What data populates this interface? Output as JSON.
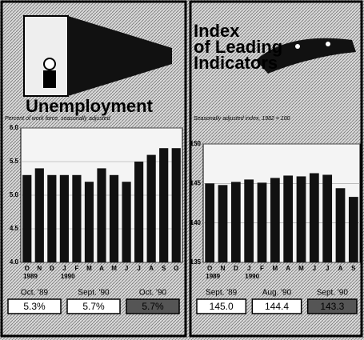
{
  "chart_data": [
    {
      "type": "bar",
      "title": [
        "Unemployment"
      ],
      "subtitle": "Percent of work force, seasonally adjusted",
      "categories": [
        "O",
        "N",
        "D",
        "J",
        "F",
        "M",
        "A",
        "M",
        "J",
        "J",
        "A",
        "S",
        "O"
      ],
      "values": [
        5.3,
        5.4,
        5.3,
        5.3,
        5.3,
        5.2,
        5.4,
        5.3,
        5.2,
        5.5,
        5.6,
        5.7,
        5.7
      ],
      "color": "#111111",
      "ylim": [
        4.0,
        6.0
      ],
      "yticks": [
        {
          "value": 4,
          "label": "4.0"
        },
        {
          "value": 4.5,
          "label": "4.5"
        },
        {
          "value": 5,
          "label": "5.0"
        },
        {
          "value": 5.5,
          "label": "5.5"
        },
        {
          "value": 6,
          "label": "6.0"
        }
      ],
      "year_labels": [
        "1989",
        "1990"
      ],
      "comparisons": {
        "labels": [
          "Oct. '89",
          "Sept. '90",
          "Oct. '90"
        ],
        "values": [
          5.3,
          5.7,
          5.7
        ],
        "value_labels": [
          "5.3%",
          "5.7%",
          "5.7%"
        ]
      }
    },
    {
      "type": "bar",
      "title": [
        "Index",
        "of Leading",
        "Indicators"
      ],
      "subtitle": "Seasonally adjusted index, 1982 = 100",
      "categories": [
        "O",
        "N",
        "D",
        "J",
        "F",
        "M",
        "A",
        "M",
        "J",
        "J",
        "A",
        "S"
      ],
      "values": [
        145.0,
        144.8,
        145.2,
        145.5,
        145.1,
        145.7,
        146.0,
        145.9,
        146.3,
        146.1,
        144.4,
        143.3
      ],
      "color": "#111111",
      "ylim": [
        135,
        150
      ],
      "yticks": [
        135,
        140,
        145,
        150
      ],
      "year_labels": [
        "1989",
        "1990"
      ],
      "comparisons": {
        "labels": [
          "Sept. '89",
          "Aug. '90",
          "Sept. '90"
        ],
        "values": [
          145.0,
          144.4,
          143.3
        ],
        "value_labels": [
          "145.0",
          "144.4",
          "143.3"
        ]
      }
    }
  ]
}
